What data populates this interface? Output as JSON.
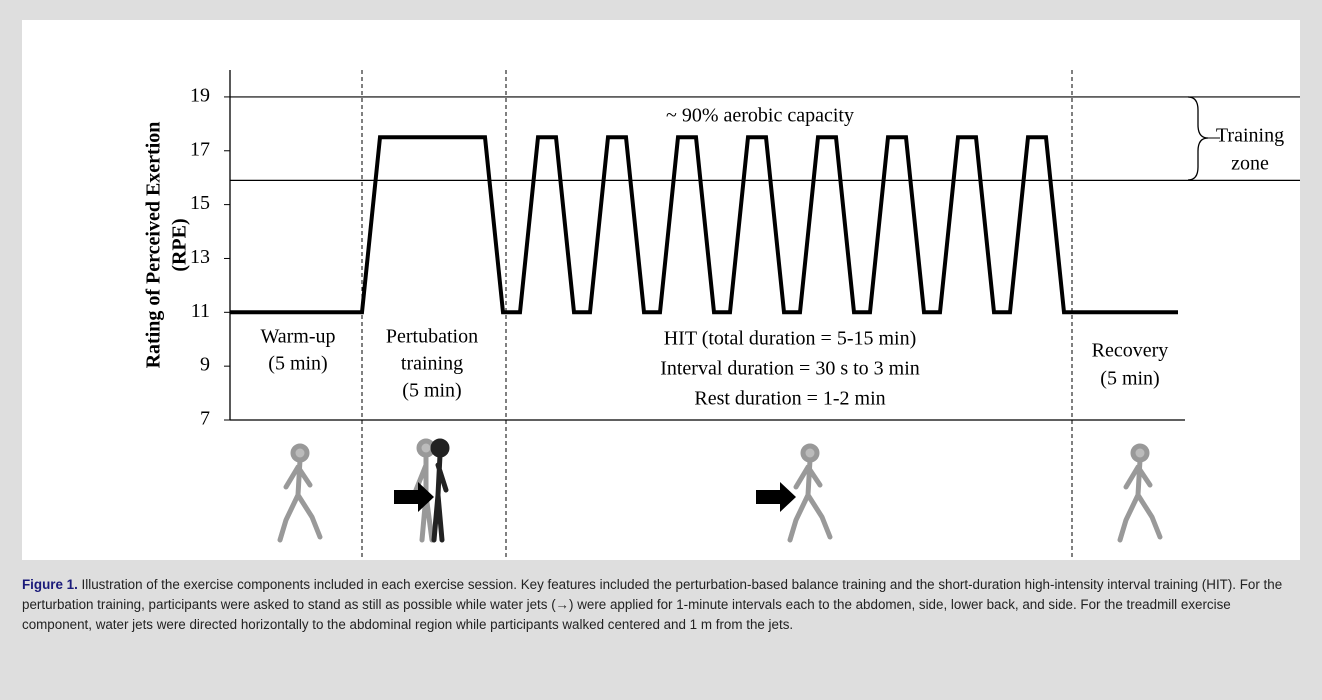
{
  "chart_data": {
    "type": "line",
    "ylabel_lines": [
      "Rating of Perceived Exertion",
      "(RPE)"
    ],
    "x": [
      0,
      132,
      150,
      255,
      273,
      290,
      308,
      326,
      344,
      360,
      378,
      396,
      414,
      430,
      448,
      466,
      484,
      500,
      518,
      536,
      554,
      570,
      588,
      606,
      624,
      640,
      658,
      676,
      694,
      710,
      728,
      746,
      764,
      780,
      798,
      816,
      834,
      948
    ],
    "series": [
      {
        "color": "#000000",
        "values": [
          11,
          11,
          17.5,
          17.5,
          11,
          11,
          17.5,
          17.5,
          11,
          11,
          17.5,
          17.5,
          11,
          11,
          17.5,
          17.5,
          11,
          11,
          17.5,
          17.5,
          11,
          11,
          17.5,
          17.5,
          11,
          11,
          17.5,
          17.5,
          11,
          11,
          17.5,
          17.5,
          11,
          11,
          17.5,
          17.5,
          11,
          11
        ]
      }
    ],
    "xlim": [
      0,
      955
    ],
    "ylim": [
      7,
      20
    ],
    "yticks": [
      7,
      9,
      11,
      13,
      15,
      17,
      19
    ],
    "training_zone": [
      15.9,
      19
    ],
    "zone_annotation": "~ 90% aerobic capacity",
    "zone_label": [
      "Training",
      "zone"
    ],
    "phases": [
      {
        "lines": [
          "Warm-up",
          "(5 min)"
        ]
      },
      {
        "lines": [
          "Pertubation",
          "training",
          "(5 min)"
        ]
      },
      {
        "lines": [
          "HIT  (total duration = 5-15 min)",
          "Interval duration = 30 s to 3 min",
          "Rest duration = 1-2 min"
        ]
      },
      {
        "lines": [
          "Recovery",
          "(5 min)"
        ]
      }
    ]
  },
  "caption": {
    "label": "Figure 1.",
    "text": "Illustration of the exercise components included in each exercise session. Key features included the perturbation-based balance training and the short-duration high-intensity interval training (HIT). For the perturbation training, participants were asked to stand as still as possible while water jets (→) were applied for 1-minute intervals each to the abdomen, side, lower back, and side. For the treadmill exercise component, water jets were directed horizontally to the abdominal region while participants walked centered and 1 m from the jets."
  }
}
